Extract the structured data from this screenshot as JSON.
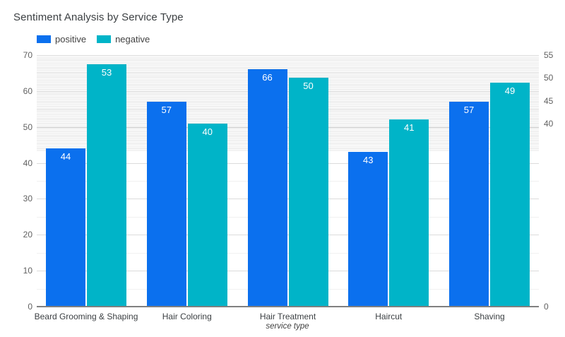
{
  "title": "Sentiment Analysis by Service Type",
  "legend": {
    "items": [
      {
        "label": "positive",
        "color": "#0b70ee"
      },
      {
        "label": "negative",
        "color": "#00b4c8"
      }
    ]
  },
  "chart_data": {
    "type": "bar",
    "title": "Sentiment Analysis by Service Type",
    "xlabel": "service type",
    "ylabel": "",
    "categories": [
      "Beard Grooming & Shaping",
      "Hair Coloring",
      "Hair Treatment",
      "Haircut",
      "Shaving"
    ],
    "series": [
      {
        "name": "positive",
        "axis": "left",
        "color": "#0b70ee",
        "values": [
          44,
          57,
          66,
          43,
          57
        ]
      },
      {
        "name": "negative",
        "axis": "right",
        "color": "#00b4c8",
        "values": [
          53,
          40,
          50,
          41,
          49
        ]
      }
    ],
    "left_axis": {
      "range": [
        0,
        70
      ],
      "ticks": [
        0,
        10,
        20,
        30,
        40,
        50,
        60,
        70
      ],
      "minor_step": 5
    },
    "right_axis": {
      "range": [
        0,
        55
      ],
      "ticks": [
        0,
        40,
        45,
        50,
        55
      ]
    },
    "legend_position": "top-left",
    "grid": true,
    "value_labels": "inside-top",
    "colors": {
      "grid_major": "#dbdbdb",
      "grid_minor": "#f1f1f1",
      "baseline": "#808080",
      "tick_text": "#616161",
      "title_text": "#3c4043",
      "value_label_text": "#ffffff"
    }
  }
}
